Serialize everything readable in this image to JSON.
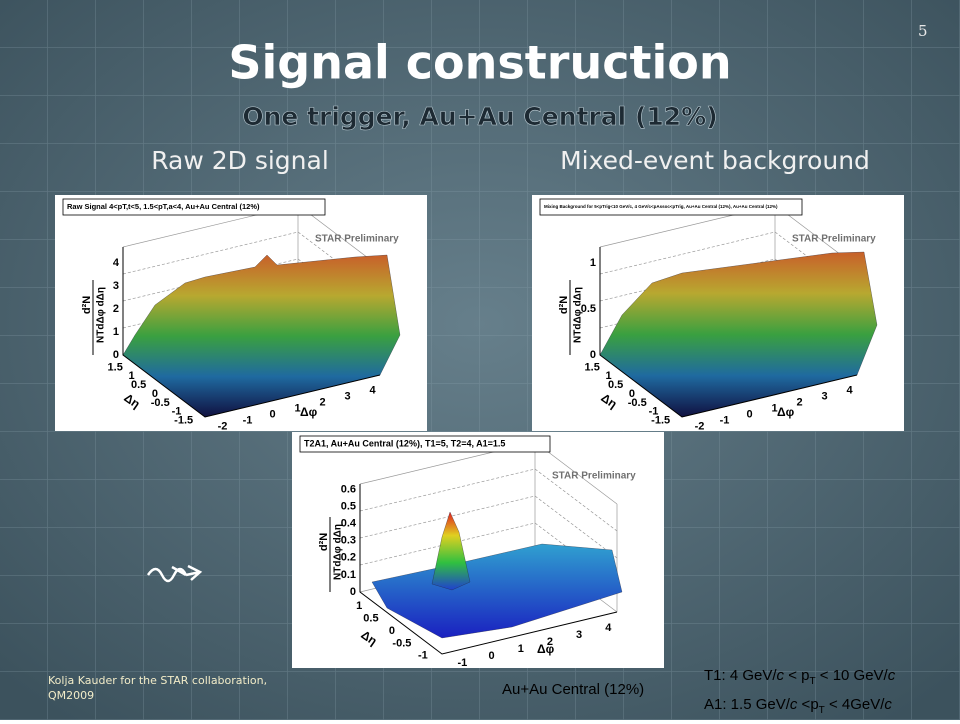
{
  "page_number": "5",
  "title": "Signal construction",
  "subtitle": "One trigger, Au+Au Central (12%)",
  "labels": [
    "Raw 2D signal",
    "Mixed-event background"
  ],
  "panels": [
    {
      "title": "Raw Signal 4<pT,t<5, 1.5<pT,a<4, Au+Au Central (12%)",
      "watermark": "STAR Preliminary",
      "zticks": [
        "0",
        "1",
        "2",
        "3",
        "4"
      ],
      "eta_ticks": [
        "1.5",
        "1",
        "0.5",
        "0",
        "-0.5",
        "-1",
        "-1.5"
      ],
      "phi_ticks": [
        "-2",
        "-1",
        "0",
        "1",
        "2",
        "3",
        "4"
      ],
      "zlabel": [
        "d²N",
        "NTdΔφ dΔη"
      ],
      "xlabel": "Δφ",
      "ylabel": "Δη"
    },
    {
      "title": "Mixing Background for 5<pTrig<10 GeV/c, 4 GeV/c<pAssoc<pTrig, Au+Au Central (12%), Au+Au Central (12%)",
      "watermark": "STAR Preliminary",
      "zticks": [
        "0",
        "0.5",
        "1"
      ],
      "eta_ticks": [
        "1.5",
        "1",
        "0.5",
        "0",
        "-0.5",
        "-1",
        "-1.5"
      ],
      "phi_ticks": [
        "-2",
        "-1",
        "0",
        "1",
        "2",
        "3",
        "4"
      ],
      "zlabel": [
        "d²N",
        "NTdΔφ dΔη"
      ],
      "xlabel": "Δφ",
      "ylabel": "Δη"
    },
    {
      "title": "T2A1, Au+Au Central (12%), T1=5, T2=4, A1=1.5",
      "watermark": "STAR Preliminary",
      "zticks": [
        "0",
        "0.1",
        "0.2",
        "0.3",
        "0.4",
        "0.5",
        "0.6"
      ],
      "eta_ticks": [
        "1",
        "0.5",
        "0",
        "-0.5",
        "-1"
      ],
      "phi_ticks": [
        "-1",
        "0",
        "1",
        "2",
        "3",
        "4"
      ],
      "zlabel": [
        "d²N",
        "NTdΔφ dΔη"
      ],
      "xlabel": "Δφ",
      "ylabel": "Δη"
    }
  ],
  "footer": {
    "credit": [
      "Kolja Kauder for the STAR collaboration,",
      "QM2009"
    ],
    "centrality": "Au+Au Central (12%)",
    "t1": [
      "T1:  4 GeV/",
      "c",
      " < p",
      "T",
      " < 10 GeV/",
      "c"
    ],
    "a1": [
      "A1: 1.5 GeV/",
      "c",
      " <p",
      "T",
      "  < 4GeV/",
      "c"
    ]
  }
}
